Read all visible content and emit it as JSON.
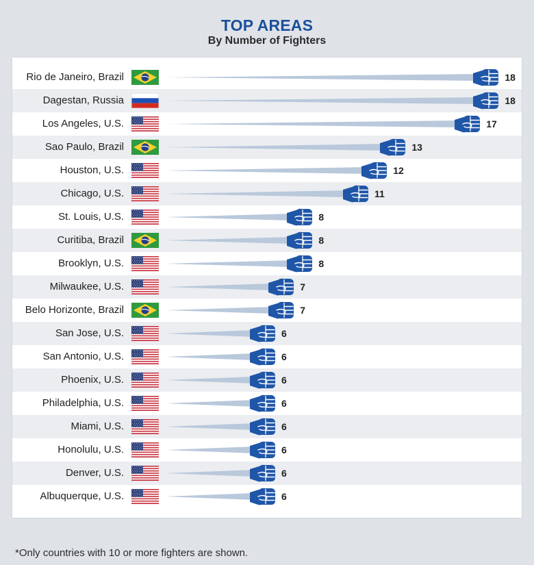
{
  "chart_data": {
    "type": "bar",
    "title": "TOP AREAS",
    "subtitle": "By Number of Fighters",
    "xlabel": "",
    "ylabel": "",
    "xlim": [
      0,
      18
    ],
    "grid": false,
    "categories": [
      "Rio de Janeiro, Brazil",
      "Dagestan, Russia",
      "Los Angeles, U.S.",
      "Sao Paulo, Brazil",
      "Houston, U.S.",
      "Chicago, U.S.",
      "St. Louis, U.S.",
      "Curitiba, Brazil",
      "Brooklyn, U.S.",
      "Milwaukee, U.S.",
      "Belo Horizonte, Brazil",
      "San Jose, U.S.",
      "San Antonio, U.S.",
      "Phoenix, U.S.",
      "Philadelphia, U.S.",
      "Miami, U.S.",
      "Honolulu, U.S.",
      "Denver, U.S.",
      "Albuquerque, U.S."
    ],
    "values": [
      18,
      18,
      17,
      13,
      12,
      11,
      8,
      8,
      8,
      7,
      7,
      6,
      6,
      6,
      6,
      6,
      6,
      6,
      6
    ],
    "flags": [
      "brazil-flag",
      "russia-flag",
      "usa-flag",
      "brazil-flag",
      "usa-flag",
      "usa-flag",
      "usa-flag",
      "brazil-flag",
      "usa-flag",
      "usa-flag",
      "brazil-flag",
      "usa-flag",
      "usa-flag",
      "usa-flag",
      "usa-flag",
      "usa-flag",
      "usa-flag",
      "usa-flag",
      "usa-flag"
    ],
    "bar_marker": "fist-icon",
    "colors": {
      "title": "#1b4f9c",
      "fist": "#1f56a8",
      "trail": "#b9c8db",
      "alt_row": "#ebedf0",
      "background": "#dfe3e8"
    }
  },
  "footnote": "*Only countries with 10 or more fighters are shown."
}
